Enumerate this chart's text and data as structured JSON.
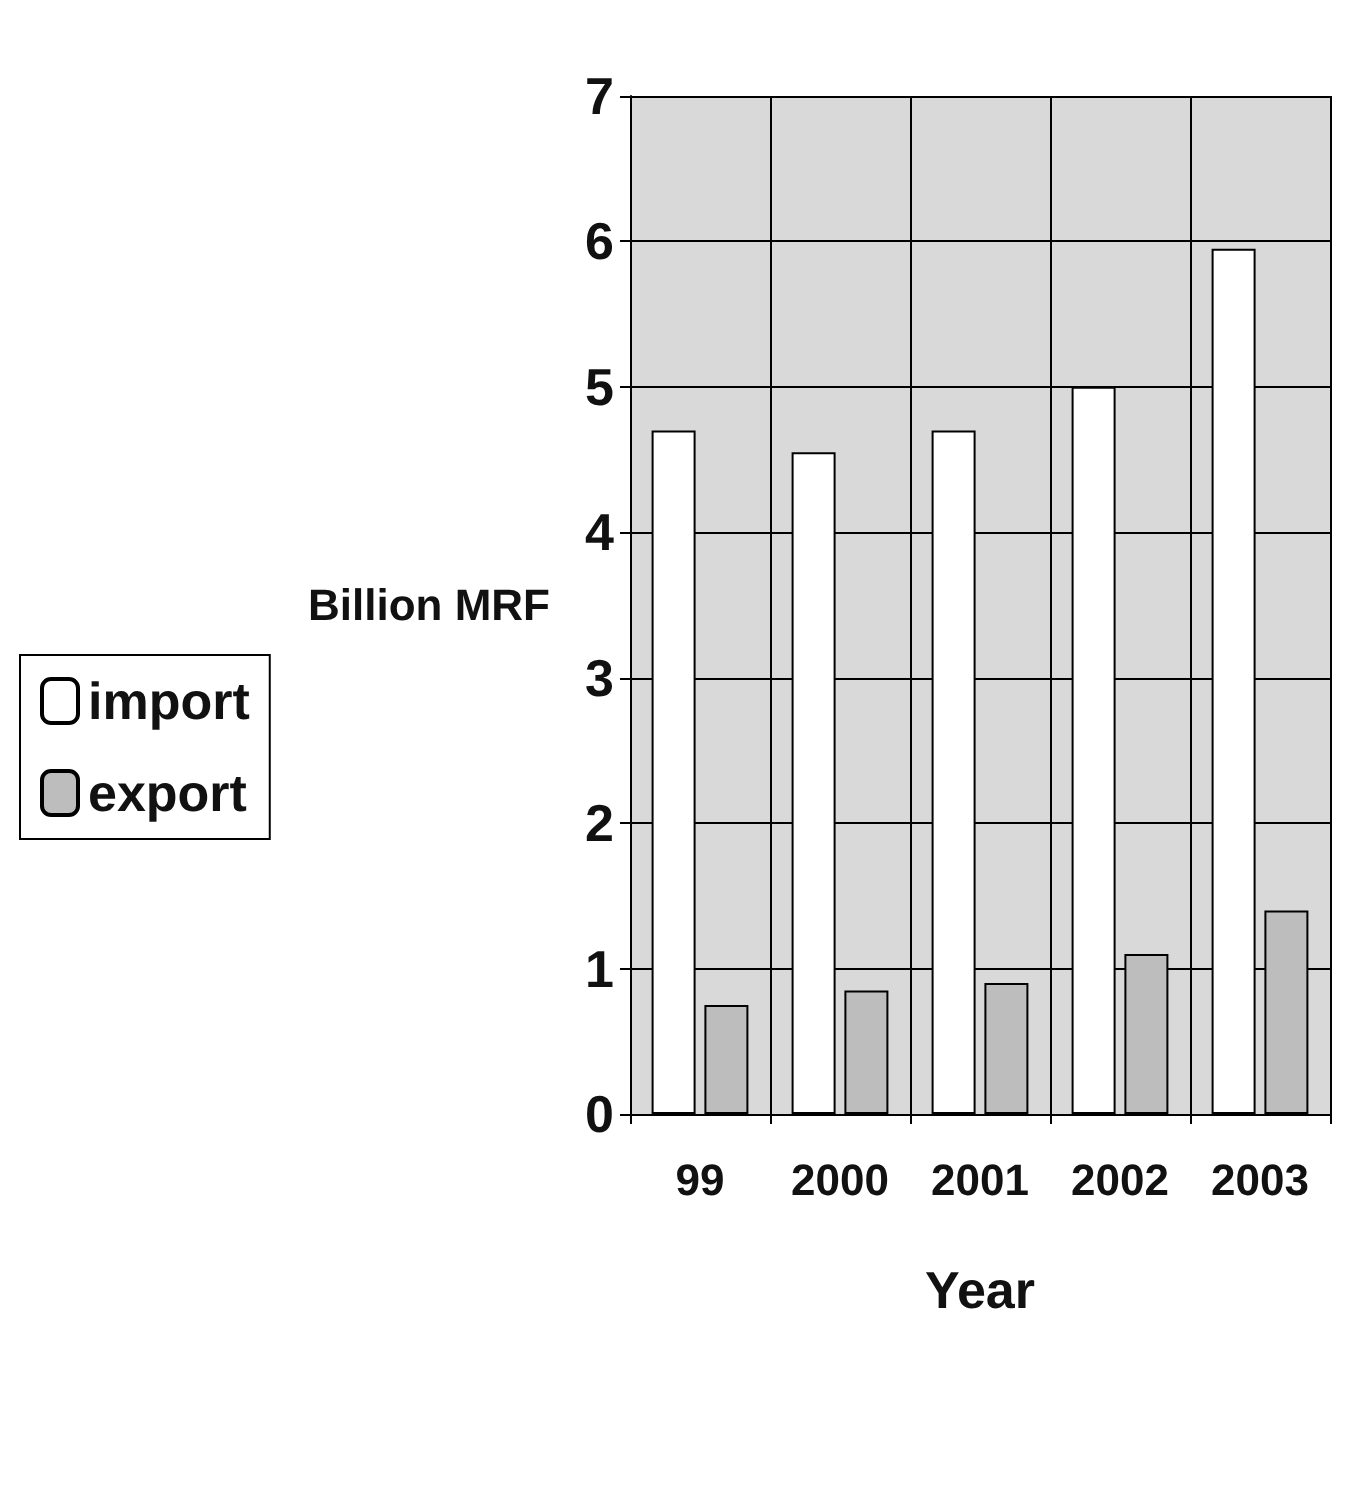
{
  "chart_data": {
    "type": "bar",
    "xlabel": "Year",
    "ylabel": "Billion MRF",
    "categories": [
      "99",
      "2000",
      "2001",
      "2002",
      "2003"
    ],
    "series": [
      {
        "name": "import",
        "color": "#ffffff",
        "values": [
          4.7,
          4.55,
          4.7,
          5.0,
          5.95
        ]
      },
      {
        "name": "export",
        "color": "#bdbdbd",
        "values": [
          0.75,
          0.85,
          0.9,
          1.1,
          1.4
        ]
      }
    ],
    "ylim": [
      0,
      7
    ],
    "yticks": [
      0,
      1,
      2,
      3,
      4,
      5,
      6,
      7
    ],
    "grid": true,
    "legend": "left"
  }
}
